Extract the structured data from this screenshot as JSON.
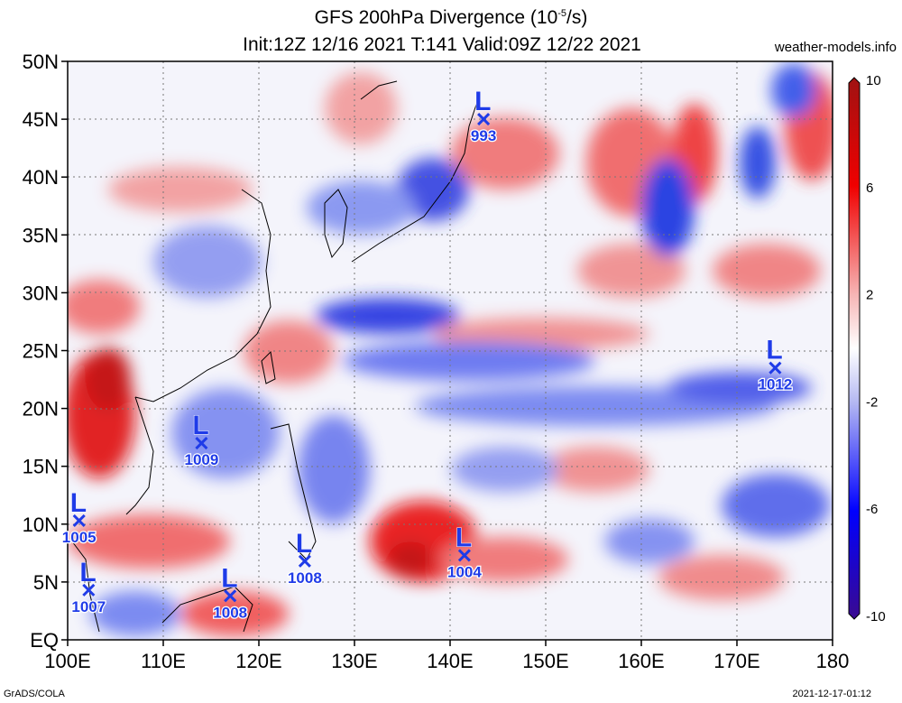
{
  "header": {
    "title": "GFS 200hPa Divergence (10",
    "title_exp": "-5",
    "title_unit": "/s)",
    "subtitle": "Init:12Z 12/16 2021 T:141 Valid:09Z 12/22 2021",
    "site": "weather-models.info"
  },
  "footer": {
    "left": "GrADS/COLA",
    "right": "2021-12-17-01:12"
  },
  "map": {
    "lon_range": [
      100,
      180
    ],
    "lat_range": [
      0,
      50
    ],
    "lat_ticks": [
      "50N",
      "45N",
      "40N",
      "35N",
      "30N",
      "25N",
      "20N",
      "15N",
      "10N",
      "5N",
      "EQ"
    ],
    "lon_ticks": [
      "100E",
      "110E",
      "120E",
      "130E",
      "140E",
      "150E",
      "160E",
      "170E",
      "180"
    ],
    "grid": "dotted",
    "colors": {
      "positive": "#e8000b",
      "negative": "#1030e0",
      "neutral": "#ffffff",
      "marker": "#1f3be8"
    }
  },
  "colorbar": {
    "labels": [
      "10",
      "6",
      "2",
      "-2",
      "-6",
      "-10"
    ],
    "values": [
      10,
      6,
      2,
      -2,
      -6,
      -10
    ]
  },
  "lows": [
    {
      "letter": "L",
      "pressure": "993",
      "lon": 143.5,
      "lat": 45.0
    },
    {
      "letter": "L",
      "pressure": "1012",
      "lon": 174.0,
      "lat": 23.5
    },
    {
      "letter": "L",
      "pressure": "1009",
      "lon": 114.0,
      "lat": 17.0
    },
    {
      "letter": "L",
      "pressure": "1005",
      "lon": 101.2,
      "lat": 10.3
    },
    {
      "letter": "L",
      "pressure": "1004",
      "lon": 141.5,
      "lat": 7.3
    },
    {
      "letter": "L",
      "pressure": "1008",
      "lon": 124.8,
      "lat": 6.8
    },
    {
      "letter": "L",
      "pressure": "1008",
      "lon": 117.0,
      "lat": 3.8
    },
    {
      "letter": "L",
      "pressure": "1007",
      "lon": 102.2,
      "lat": 4.3
    }
  ],
  "chart_data": {
    "type": "heatmap",
    "title": "GFS 200hPa Divergence (10^-5/s)",
    "subtitle": "Init:12Z 12/16 2021 T:141 Valid:09Z 12/22 2021",
    "x_range": [
      100,
      180
    ],
    "y_range": [
      0,
      50
    ],
    "color_scale": [
      -10,
      10
    ],
    "lows": [
      {
        "pressure": 993,
        "lon": 143.5,
        "lat": 45.0
      },
      {
        "pressure": 1012,
        "lon": 174.0,
        "lat": 23.5
      },
      {
        "pressure": 1009,
        "lon": 114.0,
        "lat": 17.0
      },
      {
        "pressure": 1005,
        "lon": 101.2,
        "lat": 10.3
      },
      {
        "pressure": 1004,
        "lon": 141.5,
        "lat": 7.3
      },
      {
        "pressure": 1008,
        "lon": 124.8,
        "lat": 6.8
      },
      {
        "pressure": 1008,
        "lon": 117.0,
        "lat": 3.8
      },
      {
        "pressure": 1007,
        "lon": 102.2,
        "lat": 4.3
      }
    ]
  }
}
